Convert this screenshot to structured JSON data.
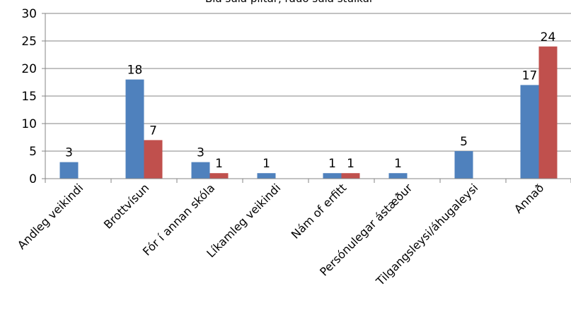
{
  "chart_data": {
    "type": "bar",
    "title": "Blá súla piltar, rauð súla stúlkur",
    "categories": [
      "Andleg veikindi",
      "Brottvísun",
      "Fór í annan skóla",
      "Líkamleg veikindi",
      "Nám of erfitt",
      "Persónulegar ástæður",
      "Tilgangsleysi/áhugaleysi",
      "Annað"
    ],
    "series": [
      {
        "color": "#4f81bd",
        "values": [
          3,
          18,
          3,
          1,
          1,
          1,
          5,
          17
        ]
      },
      {
        "color": "#c0504d",
        "values": [
          null,
          7,
          1,
          null,
          1,
          null,
          null,
          24
        ]
      }
    ],
    "ylim": [
      0,
      30
    ],
    "yticks": [
      0,
      5,
      10,
      15,
      20,
      25,
      30
    ],
    "grid": true,
    "xlabel": "",
    "ylabel": ""
  }
}
